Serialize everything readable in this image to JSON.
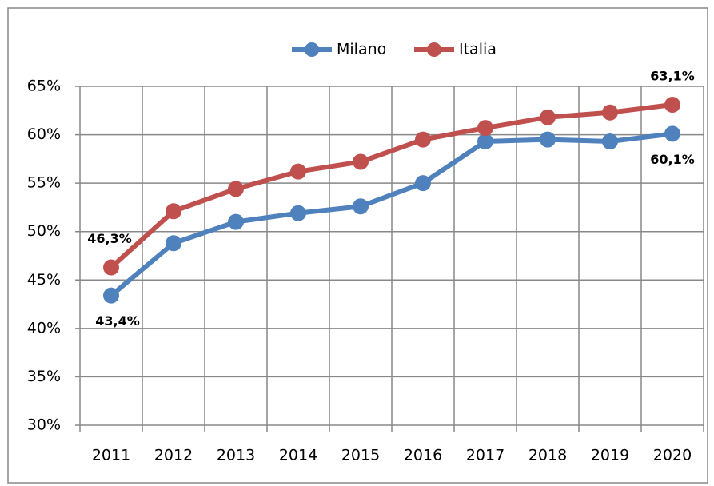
{
  "chart_data": {
    "type": "line",
    "categories": [
      "2011",
      "2012",
      "2013",
      "2014",
      "2015",
      "2016",
      "2017",
      "2018",
      "2019",
      "2020"
    ],
    "series": [
      {
        "name": "Milano",
        "color": "#4f81bd",
        "values": [
          43.4,
          48.8,
          51.0,
          51.9,
          52.6,
          55.0,
          59.3,
          59.5,
          59.3,
          60.1
        ],
        "value_labels": [
          "43,4%",
          null,
          null,
          null,
          null,
          null,
          null,
          null,
          null,
          "60,1%"
        ]
      },
      {
        "name": "Italia",
        "color": "#c0504d",
        "values": [
          46.3,
          52.1,
          54.4,
          56.2,
          57.2,
          59.5,
          60.7,
          61.8,
          62.3,
          63.1
        ],
        "value_labels": [
          "46,3%",
          null,
          null,
          null,
          null,
          null,
          null,
          null,
          null,
          "63,1%"
        ]
      }
    ],
    "ylim": [
      30,
      65
    ],
    "yticks": [
      {
        "value": 30,
        "label": "30%"
      },
      {
        "value": 35,
        "label": "35%"
      },
      {
        "value": 40,
        "label": "40%"
      },
      {
        "value": 45,
        "label": "45%"
      },
      {
        "value": 50,
        "label": "50%"
      },
      {
        "value": 55,
        "label": "55%"
      },
      {
        "value": 60,
        "label": "60%"
      },
      {
        "value": 65,
        "label": "65%"
      }
    ],
    "grid": true,
    "legend": "top"
  }
}
